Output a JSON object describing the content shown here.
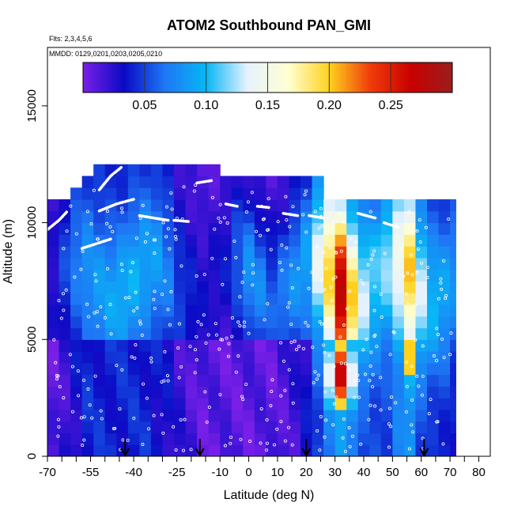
{
  "chart_data": {
    "type": "heatmap",
    "title": "ATOM2 Southbound PAN_GMI",
    "flights_note": "Flts: 2,3,4,5,6",
    "dates_note": "MMDD: 0129,0201,0203,0205,0210",
    "xlabel": "Latitude (deg N)",
    "ylabel": "Altitude (m)",
    "xlim": [
      -70,
      84
    ],
    "ylim": [
      0,
      17500
    ],
    "x_ticks": [
      {
        "value": -70,
        "label": "-70"
      },
      {
        "value": -55,
        "label": "-55"
      },
      {
        "value": -40,
        "label": "-40"
      },
      {
        "value": -25,
        "label": "-25"
      },
      {
        "value": -10,
        "label": "-10"
      },
      {
        "value": 0,
        "label": "0"
      },
      {
        "value": 10,
        "label": "10"
      },
      {
        "value": 20,
        "label": "20"
      },
      {
        "value": 30,
        "label": "30"
      },
      {
        "value": 40,
        "label": "40"
      },
      {
        "value": 50,
        "label": "50"
      },
      {
        "value": 60,
        "label": "60"
      },
      {
        "value": 70,
        "label": "70"
      },
      {
        "value": 80,
        "label": "80"
      }
    ],
    "x_minor_ticks": [
      -65,
      -60,
      -50,
      -45,
      -35,
      -30,
      -20,
      -15,
      -5,
      5,
      15,
      25,
      35,
      45,
      55,
      65,
      75
    ],
    "y_ticks": [
      {
        "value": 0,
        "label": "0"
      },
      {
        "value": 5000,
        "label": "5000"
      },
      {
        "value": 10000,
        "label": "10000"
      },
      {
        "value": 15000,
        "label": "15000"
      }
    ],
    "colorbar": {
      "range": [
        0,
        0.3
      ],
      "ticks": [
        {
          "value": 0.05,
          "label": "0.05"
        },
        {
          "value": 0.1,
          "label": "0.10"
        },
        {
          "value": 0.15,
          "label": "0.15"
        },
        {
          "value": 0.2,
          "label": "0.20"
        },
        {
          "value": 0.25,
          "label": "0.25"
        }
      ],
      "colors": [
        "#7a1fe8",
        "#0a0ac4",
        "#1e78f5",
        "#08b6f5",
        "#e6f2ff",
        "#ffffd2",
        "#ffd21e",
        "#f03c0a",
        "#c80000",
        "#9a1e1e"
      ]
    },
    "arrows_latitude": [
      -43,
      -17,
      20,
      61
    ],
    "profiles": [
      {
        "x0": -70,
        "x1": -66,
        "top": 10800,
        "min": 0.01,
        "max": 0.03
      },
      {
        "x0": -66,
        "x1": -62,
        "top": 11000,
        "min": 0.02,
        "max": 0.05
      },
      {
        "x0": -62,
        "x1": -58,
        "top": 11300,
        "min": 0.03,
        "max": 0.07
      },
      {
        "x0": -58,
        "x1": -54,
        "top": 11700,
        "min": 0.04,
        "max": 0.08
      },
      {
        "x0": -54,
        "x1": -50,
        "top": 12100,
        "min": 0.04,
        "max": 0.085
      },
      {
        "x0": -50,
        "x1": -46,
        "top": 12300,
        "min": 0.04,
        "max": 0.09
      },
      {
        "x0": -46,
        "x1": -42,
        "top": 12300,
        "min": 0.04,
        "max": 0.095
      },
      {
        "x0": -42,
        "x1": -38,
        "top": 12300,
        "min": 0.04,
        "max": 0.095
      },
      {
        "x0": -38,
        "x1": -34,
        "top": 12300,
        "min": 0.04,
        "max": 0.09
      },
      {
        "x0": -34,
        "x1": -30,
        "top": 12300,
        "min": 0.035,
        "max": 0.085
      },
      {
        "x0": -30,
        "x1": -26,
        "top": 12300,
        "min": 0.03,
        "max": 0.07
      },
      {
        "x0": -26,
        "x1": -22,
        "top": 12300,
        "min": 0.02,
        "max": 0.05
      },
      {
        "x0": -22,
        "x1": -18,
        "top": 12300,
        "min": 0.015,
        "max": 0.04
      },
      {
        "x0": -18,
        "x1": -14,
        "top": 12300,
        "min": 0.01,
        "max": 0.03
      },
      {
        "x0": -14,
        "x1": -10,
        "top": 12300,
        "min": 0.01,
        "max": 0.03
      },
      {
        "x0": -10,
        "x1": -6,
        "top": 11900,
        "min": 0.01,
        "max": 0.035
      },
      {
        "x0": -6,
        "x1": -2,
        "top": 11900,
        "min": 0.01,
        "max": 0.06
      },
      {
        "x0": -2,
        "x1": 2,
        "top": 11900,
        "min": 0.01,
        "max": 0.08
      },
      {
        "x0": 2,
        "x1": 6,
        "top": 11900,
        "min": 0.01,
        "max": 0.075
      },
      {
        "x0": 6,
        "x1": 10,
        "top": 11900,
        "min": 0.01,
        "max": 0.06
      },
      {
        "x0": 10,
        "x1": 14,
        "top": 11900,
        "min": 0.015,
        "max": 0.07
      },
      {
        "x0": 14,
        "x1": 18,
        "top": 11900,
        "min": 0.02,
        "max": 0.08
      },
      {
        "x0": 18,
        "x1": 22,
        "top": 11900,
        "min": 0.03,
        "max": 0.09
      },
      {
        "x0": 22,
        "x1": 26,
        "top": 11900,
        "min": 0.05,
        "max": 0.14
      },
      {
        "x0": 26,
        "x1": 30,
        "top": 11000,
        "min": 0.07,
        "max": 0.2
      },
      {
        "x0": 30,
        "x1": 34,
        "top": 11000,
        "min": 0.08,
        "max": 0.28
      },
      {
        "x0": 34,
        "x1": 38,
        "top": 11000,
        "min": 0.07,
        "max": 0.2
      },
      {
        "x0": 38,
        "x1": 42,
        "top": 11000,
        "min": 0.05,
        "max": 0.13
      },
      {
        "x0": 42,
        "x1": 46,
        "top": 11000,
        "min": 0.05,
        "max": 0.11
      },
      {
        "x0": 46,
        "x1": 50,
        "top": 11000,
        "min": 0.05,
        "max": 0.12
      },
      {
        "x0": 50,
        "x1": 54,
        "top": 11000,
        "min": 0.07,
        "max": 0.15
      },
      {
        "x0": 54,
        "x1": 58,
        "top": 11000,
        "min": 0.08,
        "max": 0.2
      },
      {
        "x0": 58,
        "x1": 62,
        "top": 11000,
        "min": 0.05,
        "max": 0.13
      },
      {
        "x0": 62,
        "x1": 66,
        "top": 11000,
        "min": 0.04,
        "max": 0.1
      },
      {
        "x0": 66,
        "x1": 70,
        "top": 11000,
        "min": 0.04,
        "max": 0.09
      },
      {
        "x0": 70,
        "x1": 72,
        "top": 11000,
        "min": 0.035,
        "max": 0.08
      }
    ],
    "tropopause_segments": [
      [
        [
          -70,
          9700
        ],
        [
          -66,
          10100
        ],
        [
          -63,
          10500
        ]
      ],
      [
        [
          -52,
          11400
        ],
        [
          -48,
          12000
        ],
        [
          -44,
          12400
        ]
      ],
      [
        [
          -58,
          8900
        ],
        [
          -53,
          9100
        ],
        [
          -48,
          9300
        ]
      ],
      [
        [
          -52,
          10500
        ],
        [
          -46,
          10800
        ],
        [
          -40,
          11000
        ]
      ],
      [
        [
          -38,
          10300
        ],
        [
          -33,
          10200
        ],
        [
          -28,
          10100
        ]
      ],
      [
        [
          -26,
          10100
        ],
        [
          -21,
          10050
        ]
      ],
      [
        [
          -18,
          11700
        ],
        [
          -13,
          11800
        ]
      ],
      [
        [
          -8,
          10800
        ],
        [
          -4,
          10700
        ]
      ],
      [
        [
          3,
          10700
        ],
        [
          7,
          10650
        ]
      ],
      [
        [
          12,
          10400
        ],
        [
          17,
          10300
        ]
      ],
      [
        [
          21,
          10300
        ],
        [
          26,
          10200
        ]
      ],
      [
        [
          38,
          10400
        ],
        [
          44,
          10200
        ]
      ],
      [
        [
          47,
          10000
        ],
        [
          52,
          9800
        ]
      ],
      [
        [
          60,
          11400
        ],
        [
          67,
          11500
        ]
      ]
    ],
    "sample_points_note": "open circles mark measurement locations"
  }
}
